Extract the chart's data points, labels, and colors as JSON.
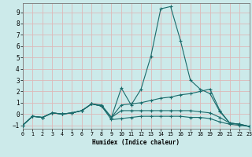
{
  "xlabel": "Humidex (Indice chaleur)",
  "bg_color": "#cceaea",
  "line_color": "#1a6b6b",
  "grid_color": "#ddb8b8",
  "xlim": [
    0,
    23
  ],
  "ylim": [
    -1.3,
    9.8
  ],
  "xticks": [
    0,
    1,
    2,
    3,
    4,
    5,
    6,
    7,
    8,
    9,
    10,
    11,
    12,
    13,
    14,
    15,
    16,
    17,
    18,
    19,
    20,
    21,
    22,
    23
  ],
  "yticks": [
    -1,
    0,
    1,
    2,
    3,
    4,
    5,
    6,
    7,
    8,
    9
  ],
  "series": [
    {
      "points": [
        [
          0,
          -1.0
        ],
        [
          1,
          -0.2
        ],
        [
          2,
          -0.3
        ],
        [
          3,
          0.1
        ],
        [
          4,
          0.0
        ],
        [
          5,
          0.1
        ],
        [
          6,
          0.3
        ],
        [
          7,
          0.9
        ],
        [
          8,
          0.8
        ],
        [
          9,
          -0.3
        ],
        [
          10,
          2.3
        ],
        [
          11,
          0.8
        ],
        [
          12,
          2.2
        ],
        [
          13,
          5.1
        ],
        [
          14,
          9.3
        ],
        [
          15,
          9.5
        ],
        [
          16,
          6.5
        ],
        [
          17,
          3.0
        ],
        [
          18,
          2.2
        ],
        [
          19,
          1.8
        ],
        [
          20,
          0.2
        ],
        [
          21,
          -0.8
        ],
        [
          22,
          -0.9
        ],
        [
          23,
          -1.1
        ]
      ],
      "marker": "+"
    },
    {
      "points": [
        [
          0,
          -1.0
        ],
        [
          1,
          -0.2
        ],
        [
          2,
          -0.3
        ],
        [
          3,
          0.1
        ],
        [
          4,
          0.0
        ],
        [
          5,
          0.1
        ],
        [
          6,
          0.3
        ],
        [
          7,
          0.9
        ],
        [
          8,
          0.7
        ],
        [
          9,
          -0.3
        ],
        [
          10,
          0.8
        ],
        [
          11,
          0.9
        ],
        [
          12,
          1.0
        ],
        [
          13,
          1.2
        ],
        [
          14,
          1.4
        ],
        [
          15,
          1.5
        ],
        [
          16,
          1.7
        ],
        [
          17,
          1.8
        ],
        [
          18,
          2.0
        ],
        [
          19,
          2.2
        ],
        [
          20,
          0.3
        ],
        [
          21,
          -0.8
        ],
        [
          22,
          -0.9
        ],
        [
          23,
          -1.1
        ]
      ],
      "marker": "+"
    },
    {
      "points": [
        [
          0,
          -1.0
        ],
        [
          1,
          -0.2
        ],
        [
          2,
          -0.3
        ],
        [
          3,
          0.1
        ],
        [
          4,
          0.0
        ],
        [
          5,
          0.1
        ],
        [
          6,
          0.3
        ],
        [
          7,
          0.9
        ],
        [
          8,
          0.7
        ],
        [
          9,
          -0.5
        ],
        [
          10,
          -0.4
        ],
        [
          11,
          -0.3
        ],
        [
          12,
          -0.2
        ],
        [
          13,
          -0.2
        ],
        [
          14,
          -0.2
        ],
        [
          15,
          -0.2
        ],
        [
          16,
          -0.2
        ],
        [
          17,
          -0.3
        ],
        [
          18,
          -0.3
        ],
        [
          19,
          -0.4
        ],
        [
          20,
          -0.7
        ],
        [
          21,
          -0.9
        ],
        [
          22,
          -1.0
        ],
        [
          23,
          -1.1
        ]
      ],
      "marker": "+"
    },
    {
      "points": [
        [
          0,
          -1.0
        ],
        [
          1,
          -0.2
        ],
        [
          2,
          -0.3
        ],
        [
          3,
          0.1
        ],
        [
          4,
          0.0
        ],
        [
          5,
          0.1
        ],
        [
          6,
          0.3
        ],
        [
          7,
          0.9
        ],
        [
          8,
          0.7
        ],
        [
          9,
          -0.3
        ],
        [
          10,
          0.3
        ],
        [
          11,
          0.3
        ],
        [
          12,
          0.3
        ],
        [
          13,
          0.3
        ],
        [
          14,
          0.3
        ],
        [
          15,
          0.3
        ],
        [
          16,
          0.3
        ],
        [
          17,
          0.3
        ],
        [
          18,
          0.2
        ],
        [
          19,
          0.1
        ],
        [
          20,
          -0.3
        ],
        [
          21,
          -0.8
        ],
        [
          22,
          -0.9
        ],
        [
          23,
          -1.1
        ]
      ],
      "marker": "+"
    }
  ]
}
